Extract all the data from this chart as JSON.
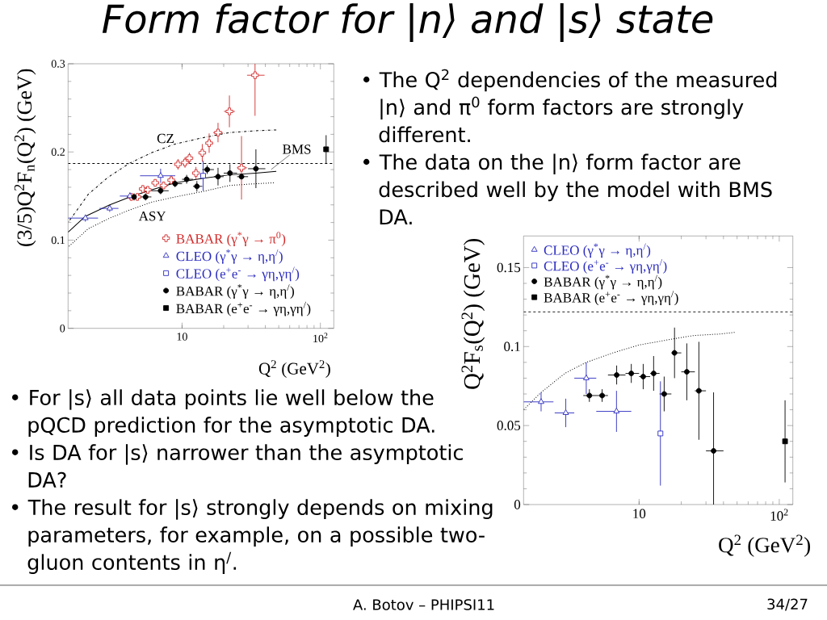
{
  "chart_data": [
    {
      "type": "other",
      "title": "Form factor for |n⟩ and |s⟩ state",
      "annotations": [
        "• The Q$^{2}$ dependencies of the measured |n⟩ and π$^{0}$ form factors are strongly different.",
        "• The data on the |n⟩ form factor are described well by the model with BMS DA.",
        "• For |s⟩ all data points lie well below the pQCD prediction for the asymptotic DA.",
        "• Is DA for |s⟩ narrower than the asymptotic DA?",
        "• The result for |s⟩ strongly depends on mixing parameters, for example, on a possible two-gluon contents in η$^{/}$.",
        "A. Botov – PHIPSI11",
        "34/27"
      ]
    },
    {
      "type": "scatter",
      "xlabel": "Q$^{2}$ (GeV$^{2}$)",
      "ylabel": "(3/5)Q$^{2}$F$_{n}$(Q$^{2}$) (GeV)",
      "log": "x",
      "xlim": [
        1.5,
        125
      ],
      "ylim": [
        0,
        0.3
      ],
      "xticks": [
        10,
        {
          "value": 100,
          "label": "10$^{2}$"
        }
      ],
      "yticks": [
        0,
        0.1,
        0.2,
        0.3
      ],
      "legend": "bottom right",
      "ref_lines": [
        {
          "axis": "y",
          "value": 0.187,
          "line_style": "dashed"
        }
      ],
      "annotations": [
        {
          "text": "CZ",
          "x": 7.6,
          "y": 0.205
        },
        {
          "text": "BMS",
          "x": 44,
          "y": 0.18
        },
        {
          "text": "ASY",
          "x": 6.1,
          "y": 0.143
        }
      ],
      "series": [
        {
          "name": "BABAR (γ$^{*}$γ → π$^{0}$)",
          "color": "#d42a2a",
          "marker": "cross",
          "x": [
            4.3,
            4.75,
            5.2,
            5.65,
            6.4,
            7.35,
            8.35,
            9.35,
            10.5,
            11.3,
            12.6,
            14.0,
            15.7,
            18.2,
            22.0,
            26.9,
            33.7
          ],
          "values": [
            0.149,
            0.149,
            0.158,
            0.157,
            0.165,
            0.162,
            0.168,
            0.186,
            0.188,
            0.193,
            0.176,
            0.199,
            0.21,
            0.222,
            0.246,
            0.182,
            0.287
          ],
          "errors": [
            0.004,
            0.004,
            0.004,
            0.004,
            0.004,
            0.004,
            0.005,
            0.006,
            0.006,
            0.006,
            0.007,
            0.01,
            0.011,
            0.011,
            0.018,
            0.036,
            [
              0.241,
              0.3
            ]
          ],
          "xerrors": [
            null,
            null,
            null,
            null,
            null,
            null,
            null,
            null,
            null,
            null,
            null,
            null,
            [
              14.8,
              16.8
            ],
            [
              16.8,
              19.7
            ],
            [
              20.1,
              24.1
            ],
            [
              24.9,
              29.5
            ],
            [
              29.5,
              39.5
            ]
          ]
        },
        {
          "name": "CLEO (γ$^{*}$γ → η,η$^{/}$)",
          "color": "#2b2bc0",
          "marker": "triangle",
          "x": [
            2.0,
            3.0,
            4.2,
            7.0
          ],
          "values": [
            0.125,
            0.136,
            0.15,
            0.173
          ],
          "errors": [
            0.004,
            0.004,
            0.004,
            0.008
          ],
          "xerrors": [
            [
              1.5,
              2.47
            ],
            [
              2.53,
              3.47
            ],
            [
              3.55,
              4.97
            ],
            [
              4.97,
              8.93
            ]
          ]
        },
        {
          "name": "CLEO (e$^{+}$e$^{-}$ → γη,γη$^{/}$)",
          "color": "#2b2bc0",
          "marker": "square",
          "x": [
            14.2
          ],
          "values": [
            0.173
          ],
          "errors": [
            0.017
          ]
        },
        {
          "name": "BABAR (γ$^{*}$γ → η,η$^{/}$)",
          "color": "#000000",
          "marker": "circle",
          "x": [
            4.5,
            5.45,
            7.0,
            8.9,
            10.8,
            12.8,
            15.2,
            18.2,
            22.2,
            26.9,
            34.2
          ],
          "values": [
            0.149,
            0.149,
            0.156,
            0.164,
            0.169,
            0.161,
            0.18,
            0.172,
            0.176,
            0.172,
            0.181
          ],
          "errors": [
            0.004,
            0.004,
            0.004,
            0.004,
            0.005,
            0.006,
            0.005,
            0.01,
            0.01,
            null,
            0.022
          ],
          "xerrors": [
            [
              4,
              5
            ],
            [
              5,
              6
            ],
            [
              6,
              8
            ],
            [
              8,
              10
            ],
            [
              10,
              12
            ],
            [
              12,
              14
            ],
            [
              14,
              17
            ],
            [
              17,
              20
            ],
            [
              20,
              25
            ],
            [
              25,
              30
            ],
            [
              30,
              40
            ]
          ]
        },
        {
          "name": "BABAR (e$^{+}$e$^{-}$ → γη,γη$^{/}$)",
          "color": "#000000",
          "marker": "square",
          "x": [
            110
          ],
          "values": [
            0.203
          ],
          "errors": [
            0.016
          ]
        },
        {
          "type": "line",
          "color": "#000000",
          "line_style": "dashdot",
          "x": [
            1.5,
            2.1,
            2.9,
            4.15,
            6.0,
            8.9,
            14,
            22,
            34,
            48
          ],
          "values": [
            0.12,
            0.152,
            0.171,
            0.187,
            0.199,
            0.209,
            0.216,
            0.222,
            0.224,
            0.225
          ]
        },
        {
          "type": "line",
          "color": "#000000",
          "line_style": "solid",
          "x": [
            1.5,
            2.0,
            3.0,
            4.2,
            6.0,
            8.9,
            14,
            22,
            34,
            48
          ],
          "values": [
            0.109,
            0.127,
            0.14,
            0.149,
            0.157,
            0.165,
            0.17,
            0.174,
            0.176,
            0.178
          ]
        },
        {
          "type": "line",
          "color": "#000000",
          "line_style": "dotted",
          "x": [
            1.5,
            2.1,
            3.0,
            4.15,
            6.0,
            8.9,
            14,
            22,
            34,
            46
          ],
          "values": [
            0.092,
            0.113,
            0.125,
            0.134,
            0.143,
            0.149,
            0.155,
            0.162,
            0.164,
            0.165
          ]
        }
      ]
    },
    {
      "type": "scatter",
      "xlabel": "Q$^{2}$ (GeV$^{2}$)",
      "ylabel": "Q$^{2}$F$_{s}$(Q$^{2}$) (GeV)",
      "log": "x",
      "xlim": [
        1.5,
        125
      ],
      "ylim": [
        0,
        0.17
      ],
      "xticks": [
        10,
        {
          "value": 100,
          "label": "10$^{2}$"
        }
      ],
      "yticks": [
        0,
        0.05,
        0.1,
        0.15
      ],
      "legend": "top left",
      "ref_lines": [
        {
          "axis": "y",
          "value": 0.122,
          "line_style": "dashed"
        }
      ],
      "series": [
        {
          "name": "CLEO (γ$^{*}$γ → η,η$^{/}$)",
          "color": "#2b2bc0",
          "marker": "triangle",
          "x": [
            2.0,
            3.0,
            4.2,
            6.9
          ],
          "values": [
            0.065,
            0.058,
            0.08,
            0.059
          ],
          "errors": [
            0.006,
            0.009,
            0.01,
            0.013
          ],
          "xerrors": [
            [
              1.5,
              2.45
            ],
            [
              2.5,
              3.45
            ],
            [
              3.45,
              4.95
            ],
            [
              4.95,
              8.8
            ]
          ]
        },
        {
          "name": "CLEO (e$^{+}$e$^{-}$ → γη,γη$^{/}$)",
          "color": "#2b2bc0",
          "marker": "square",
          "x": [
            14.2
          ],
          "values": [
            0.045
          ],
          "errors": [
            0.033
          ]
        },
        {
          "name": "BABAR (γ$^{*}$γ → η,η$^{/}$)",
          "color": "#000000",
          "marker": "circle",
          "x": [
            4.42,
            5.45,
            6.92,
            8.8,
            10.7,
            12.7,
            15.1,
            17.9,
            21.9,
            26.7,
            34.0
          ],
          "values": [
            0.069,
            0.069,
            0.082,
            0.083,
            0.081,
            0.083,
            0.07,
            0.096,
            0.084,
            0.072,
            0.034
          ],
          "errors": [
            0.004,
            0.004,
            0.006,
            0.006,
            0.008,
            0.011,
            0.011,
            0.016,
            0.018,
            0.031,
            [
              0.0,
              0.071
            ]
          ],
          "xerrors": [
            [
              4,
              5
            ],
            [
              5,
              6
            ],
            [
              6,
              8
            ],
            [
              8,
              10
            ],
            [
              10,
              12
            ],
            [
              12,
              14
            ],
            [
              14,
              17
            ],
            [
              17,
              20
            ],
            [
              20,
              25
            ],
            [
              25,
              30
            ],
            [
              30,
              40
            ]
          ]
        },
        {
          "name": "BABAR (e$^{+}$e$^{-}$ → γη,γη$^{/}$)",
          "color": "#000000",
          "marker": "square",
          "x": [
            110
          ],
          "values": [
            0.04
          ],
          "errors": [
            0.026
          ]
        },
        {
          "type": "line",
          "color": "#000000",
          "line_style": "dotted",
          "x": [
            1.5,
            2.0,
            2.95,
            4.2,
            6.5,
            10,
            17.9,
            24.6,
            38.5,
            48
          ],
          "values": [
            0.06,
            0.071,
            0.083,
            0.09,
            0.096,
            0.101,
            0.105,
            0.107,
            0.108,
            0.109
          ]
        }
      ]
    }
  ]
}
